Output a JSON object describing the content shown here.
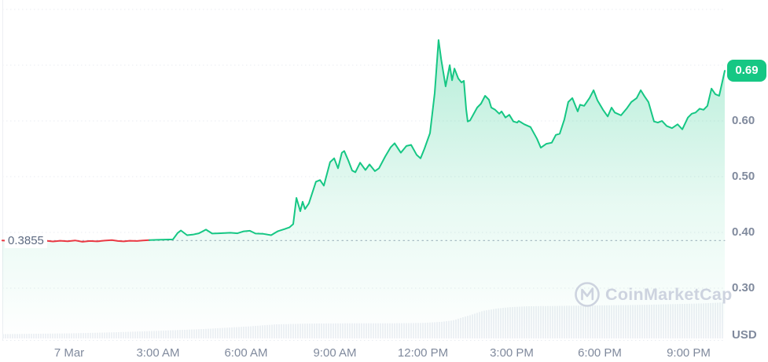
{
  "chart": {
    "prev_close": {
      "label": "0.3855",
      "value": 0.3855
    },
    "price_badge": {
      "label": "0.69"
    },
    "unit_label": "USD",
    "watermark_text": "CoinMarketCap",
    "colors": {
      "up": "#16c784",
      "down": "#ea3943",
      "fill_top": "rgba(22,199,132,0.32)",
      "fill_mid": "rgba(22,199,132,0.10)",
      "fill_bottom": "rgba(22,199,132,0)",
      "axis_text": "#808a9d",
      "prev_close_text": "#5d6a81",
      "gridline": "#e9ecf1",
      "axis_line": "#edeff3",
      "prev_close_line": "#a9b2c1",
      "volume_fill": "#eef1f5",
      "watermark": "#cdd3df",
      "badge_text": "#ffffff"
    }
  },
  "chart_data": {
    "type": "area",
    "title": "",
    "x_unit": "hours from 7 Mar 00:00",
    "x_range": [
      -2.27,
      22.3
    ],
    "ylim": [
      0.2,
      0.8
    ],
    "grid": "horizontal-dotted",
    "legend": "none",
    "x_ticks": [
      {
        "h": 0,
        "label": "7 Mar"
      },
      {
        "h": 3,
        "label": "3:00 AM"
      },
      {
        "h": 6,
        "label": "6:00 AM"
      },
      {
        "h": 9,
        "label": "9:00 AM"
      },
      {
        "h": 12,
        "label": "12:00 PM"
      },
      {
        "h": 15,
        "label": "3:00 PM"
      },
      {
        "h": 18,
        "label": "6:00 PM"
      },
      {
        "h": 21,
        "label": "9:00 PM"
      }
    ],
    "y_ticks": [
      {
        "v": 0.6,
        "label": "0.60"
      },
      {
        "v": 0.5,
        "label": "0.50"
      },
      {
        "v": 0.4,
        "label": "0.40"
      },
      {
        "v": 0.3,
        "label": "0.30"
      }
    ],
    "y_gridlines": [
      0.8,
      0.7,
      0.6,
      0.5,
      0.4,
      0.3
    ],
    "prev_close": 0.3855,
    "last": 0.69,
    "high": 0.745,
    "low": 0.383,
    "down_until_h": 2.72,
    "series": [
      {
        "name": "price_usd",
        "points": [
          [
            -2.27,
            0.3855
          ],
          [
            -2.05,
            0.385
          ],
          [
            -1.8,
            0.386
          ],
          [
            -1.55,
            0.3845
          ],
          [
            -1.3,
            0.3855
          ],
          [
            -1.05,
            0.384
          ],
          [
            -0.8,
            0.3852
          ],
          [
            -0.55,
            0.3838
          ],
          [
            -0.3,
            0.385
          ],
          [
            -0.05,
            0.3842
          ],
          [
            0.2,
            0.3856
          ],
          [
            0.45,
            0.3832
          ],
          [
            0.7,
            0.3846
          ],
          [
            0.95,
            0.384
          ],
          [
            1.2,
            0.3854
          ],
          [
            1.45,
            0.3862
          ],
          [
            1.65,
            0.3846
          ],
          [
            1.85,
            0.384
          ],
          [
            2.05,
            0.385
          ],
          [
            2.3,
            0.3846
          ],
          [
            2.5,
            0.3856
          ],
          [
            2.72,
            0.3862
          ],
          [
            2.99,
            0.3868
          ],
          [
            3.25,
            0.3872
          ],
          [
            3.52,
            0.3875
          ],
          [
            3.68,
            0.399
          ],
          [
            3.79,
            0.4035
          ],
          [
            4.0,
            0.395
          ],
          [
            4.19,
            0.396
          ],
          [
            4.4,
            0.3985
          ],
          [
            4.64,
            0.405
          ],
          [
            4.85,
            0.398
          ],
          [
            5.07,
            0.3985
          ],
          [
            5.47,
            0.3995
          ],
          [
            5.71,
            0.3985
          ],
          [
            5.92,
            0.402
          ],
          [
            6.13,
            0.403
          ],
          [
            6.32,
            0.398
          ],
          [
            6.59,
            0.3975
          ],
          [
            6.85,
            0.395
          ],
          [
            7.07,
            0.402
          ],
          [
            7.31,
            0.406
          ],
          [
            7.47,
            0.409
          ],
          [
            7.6,
            0.415
          ],
          [
            7.71,
            0.462
          ],
          [
            7.84,
            0.438
          ],
          [
            7.92,
            0.455
          ],
          [
            8.0,
            0.442
          ],
          [
            8.13,
            0.452
          ],
          [
            8.37,
            0.491
          ],
          [
            8.51,
            0.494
          ],
          [
            8.64,
            0.484
          ],
          [
            8.77,
            0.51
          ],
          [
            8.85,
            0.526
          ],
          [
            8.99,
            0.533
          ],
          [
            9.12,
            0.515
          ],
          [
            9.25,
            0.543
          ],
          [
            9.33,
            0.546
          ],
          [
            9.47,
            0.529
          ],
          [
            9.6,
            0.511
          ],
          [
            9.71,
            0.508
          ],
          [
            9.87,
            0.525
          ],
          [
            10.05,
            0.512
          ],
          [
            10.19,
            0.522
          ],
          [
            10.37,
            0.51
          ],
          [
            10.51,
            0.515
          ],
          [
            10.72,
            0.536
          ],
          [
            10.91,
            0.553
          ],
          [
            11.04,
            0.56
          ],
          [
            11.25,
            0.543
          ],
          [
            11.44,
            0.555
          ],
          [
            11.6,
            0.557
          ],
          [
            11.79,
            0.539
          ],
          [
            11.92,
            0.533
          ],
          [
            12.05,
            0.55
          ],
          [
            12.24,
            0.578
          ],
          [
            12.4,
            0.65
          ],
          [
            12.53,
            0.745
          ],
          [
            12.62,
            0.71
          ],
          [
            12.77,
            0.662
          ],
          [
            12.91,
            0.7
          ],
          [
            12.99,
            0.673
          ],
          [
            13.07,
            0.694
          ],
          [
            13.2,
            0.676
          ],
          [
            13.31,
            0.669
          ],
          [
            13.39,
            0.672
          ],
          [
            13.47,
            0.62
          ],
          [
            13.52,
            0.599
          ],
          [
            13.6,
            0.601
          ],
          [
            13.84,
            0.624
          ],
          [
            13.97,
            0.631
          ],
          [
            14.11,
            0.645
          ],
          [
            14.24,
            0.638
          ],
          [
            14.32,
            0.624
          ],
          [
            14.45,
            0.62
          ],
          [
            14.59,
            0.613
          ],
          [
            14.67,
            0.617
          ],
          [
            14.8,
            0.606
          ],
          [
            14.93,
            0.611
          ],
          [
            15.07,
            0.599
          ],
          [
            15.2,
            0.597
          ],
          [
            15.25,
            0.6
          ],
          [
            15.44,
            0.594
          ],
          [
            15.65,
            0.589
          ],
          [
            15.87,
            0.568
          ],
          [
            16.0,
            0.552
          ],
          [
            16.19,
            0.559
          ],
          [
            16.37,
            0.561
          ],
          [
            16.51,
            0.575
          ],
          [
            16.64,
            0.577
          ],
          [
            16.8,
            0.603
          ],
          [
            16.93,
            0.634
          ],
          [
            17.07,
            0.641
          ],
          [
            17.25,
            0.617
          ],
          [
            17.33,
            0.629
          ],
          [
            17.47,
            0.627
          ],
          [
            17.65,
            0.641
          ],
          [
            17.79,
            0.655
          ],
          [
            17.92,
            0.637
          ],
          [
            18.11,
            0.62
          ],
          [
            18.27,
            0.608
          ],
          [
            18.4,
            0.624
          ],
          [
            18.51,
            0.615
          ],
          [
            18.72,
            0.61
          ],
          [
            18.91,
            0.622
          ],
          [
            19.07,
            0.634
          ],
          [
            19.25,
            0.641
          ],
          [
            19.39,
            0.655
          ],
          [
            19.52,
            0.644
          ],
          [
            19.65,
            0.634
          ],
          [
            19.84,
            0.599
          ],
          [
            19.97,
            0.597
          ],
          [
            20.11,
            0.6
          ],
          [
            20.27,
            0.591
          ],
          [
            20.45,
            0.587
          ],
          [
            20.64,
            0.594
          ],
          [
            20.8,
            0.585
          ],
          [
            20.99,
            0.606
          ],
          [
            21.12,
            0.613
          ],
          [
            21.25,
            0.615
          ],
          [
            21.39,
            0.622
          ],
          [
            21.52,
            0.62
          ],
          [
            21.65,
            0.627
          ],
          [
            21.79,
            0.658
          ],
          [
            21.92,
            0.648
          ],
          [
            22.05,
            0.645
          ],
          [
            22.24,
            0.69
          ]
        ]
      }
    ],
    "volume_envelope": [
      [
        -2.27,
        0.12
      ],
      [
        0,
        0.14
      ],
      [
        1.5,
        0.17
      ],
      [
        3,
        0.21
      ],
      [
        4.5,
        0.26
      ],
      [
        6,
        0.33
      ],
      [
        7,
        0.39
      ],
      [
        8,
        0.41
      ],
      [
        9.5,
        0.42
      ],
      [
        11,
        0.42
      ],
      [
        12,
        0.43
      ],
      [
        12.6,
        0.46
      ],
      [
        13,
        0.5
      ],
      [
        13.3,
        0.58
      ],
      [
        13.6,
        0.65
      ],
      [
        14,
        0.76
      ],
      [
        14.5,
        0.83
      ],
      [
        15,
        0.87
      ],
      [
        15.5,
        0.89
      ],
      [
        16.5,
        0.9
      ],
      [
        17.5,
        0.91
      ],
      [
        18.5,
        0.92
      ],
      [
        19.5,
        0.93
      ],
      [
        20.5,
        0.95
      ],
      [
        21.5,
        0.97
      ],
      [
        22.24,
        1.0
      ]
    ]
  }
}
